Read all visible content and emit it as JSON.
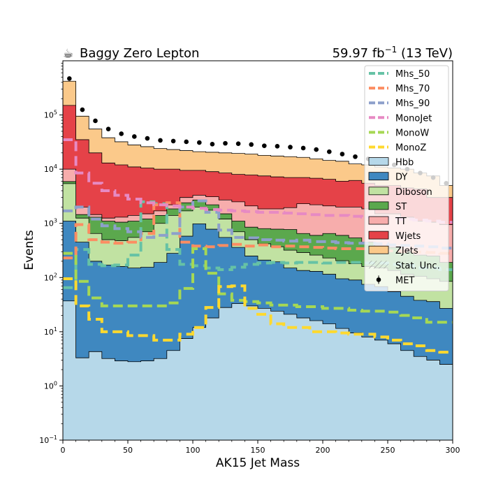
{
  "chart_data": {
    "type": "area",
    "title_left": "Baggy Zero Lepton",
    "title_left_icon": "coffee-cup-icon",
    "title_right_prefix": "59.97 fb",
    "title_right_exp": "−1",
    "title_right_suffix": " (13 TeV)",
    "xlabel": "AK15 Jet Mass",
    "ylabel": "Events",
    "xlim": [
      0,
      300
    ],
    "ylim": [
      0.1,
      1000000
    ],
    "yscale": "log",
    "x_ticks": [
      0,
      50,
      100,
      150,
      200,
      250,
      300
    ],
    "y_ticks": [
      {
        "value": 0.1,
        "base": "10",
        "exp": "−1"
      },
      {
        "value": 1,
        "base": "10",
        "exp": "0"
      },
      {
        "value": 10,
        "base": "10",
        "exp": "1"
      },
      {
        "value": 100,
        "base": "10",
        "exp": "2"
      },
      {
        "value": 1000,
        "base": "10",
        "exp": "3"
      },
      {
        "value": 10000,
        "base": "10",
        "exp": "4"
      },
      {
        "value": 100000,
        "base": "10",
        "exp": "5"
      }
    ],
    "bin_edges": [
      0,
      10,
      20,
      30,
      40,
      50,
      60,
      70,
      80,
      90,
      100,
      110,
      120,
      130,
      140,
      150,
      160,
      170,
      180,
      190,
      200,
      210,
      220,
      230,
      240,
      250,
      260,
      270,
      280,
      290,
      300
    ],
    "stack_order": [
      "Hbb",
      "DY",
      "Diboson",
      "ST",
      "TT",
      "Wjets",
      "ZJets"
    ],
    "backgrounds": [
      {
        "name": "Hbb",
        "color": "#b6d8e9",
        "cumulative": [
          37,
          3.3,
          4.3,
          3.2,
          2.9,
          2.8,
          2.9,
          3.2,
          4.5,
          7.5,
          12,
          18,
          28,
          33,
          30,
          27,
          24,
          21,
          18,
          16,
          14,
          11.5,
          9.5,
          8,
          7,
          6,
          4.5,
          3.5,
          3,
          2.5
        ]
      },
      {
        "name": "DY",
        "color": "#3f88c0",
        "cumulative": [
          1100,
          450,
          200,
          170,
          160,
          150,
          155,
          190,
          280,
          580,
          980,
          780,
          550,
          360,
          250,
          210,
          195,
          150,
          135,
          130,
          115,
          95,
          90,
          75,
          68,
          55,
          45,
          38,
          36,
          27
        ]
      },
      {
        "name": "Diboson",
        "color": "#c1e2a2",
        "cumulative": [
          5400,
          1250,
          650,
          500,
          480,
          550,
          700,
          1000,
          1400,
          1700,
          2000,
          1750,
          1200,
          700,
          500,
          420,
          370,
          320,
          290,
          260,
          230,
          205,
          180,
          160,
          150,
          135,
          115,
          105,
          95,
          85
        ]
      },
      {
        "name": "ST",
        "color": "#5ba84d",
        "cumulative": [
          5900,
          1450,
          1300,
          1100,
          1050,
          1100,
          1200,
          1400,
          1850,
          2400,
          2700,
          2200,
          1500,
          1100,
          850,
          800,
          780,
          770,
          650,
          600,
          650,
          600,
          540,
          450,
          380,
          360,
          300,
          260,
          250,
          190
        ]
      },
      {
        "name": "TT",
        "color": "#f7adac",
        "cumulative": [
          10000,
          2000,
          1450,
          1250,
          1300,
          1400,
          1500,
          1700,
          2200,
          3000,
          3300,
          3100,
          2700,
          2500,
          2100,
          1850,
          1850,
          1950,
          2300,
          2200,
          2100,
          2000,
          2000,
          1850,
          1500,
          1500,
          1300,
          1100,
          1050,
          950
        ]
      },
      {
        "name": "Wjets",
        "color": "#e54248",
        "cumulative": [
          150000,
          35000,
          20000,
          13000,
          12000,
          11000,
          10500,
          10000,
          10000,
          9500,
          9500,
          9000,
          8500,
          8000,
          7800,
          7500,
          7200,
          7000,
          7000,
          6800,
          6500,
          6000,
          6200,
          5500,
          5000,
          5000,
          4500,
          4300,
          3000,
          3000
        ]
      },
      {
        "name": "ZJets",
        "color": "#fbc98a",
        "cumulative": [
          420000,
          95000,
          55000,
          38000,
          32000,
          28000,
          26000,
          24000,
          23000,
          22000,
          21000,
          20500,
          20000,
          19500,
          19000,
          18000,
          17500,
          17000,
          16500,
          15500,
          14500,
          14000,
          12500,
          12000,
          11000,
          10500,
          10000,
          8500,
          7500,
          5000
        ]
      }
    ],
    "signals": [
      {
        "name": "Mhs_50",
        "color": "#66c2a5",
        "values": [
          65,
          330,
          175,
          165,
          170,
          260,
          2500,
          2300,
          330,
          175,
          165,
          150,
          140,
          155,
          175,
          185,
          190,
          185,
          190,
          190,
          185,
          190,
          190,
          185,
          185,
          175,
          170,
          150,
          150,
          140
        ]
      },
      {
        "name": "Mhs_70",
        "color": "#fc8d62",
        "values": [
          230,
          950,
          500,
          450,
          430,
          450,
          650,
          2200,
          2400,
          450,
          380,
          370,
          390,
          410,
          380,
          400,
          370,
          380,
          370,
          360,
          350,
          340,
          340,
          340,
          320,
          310,
          300,
          295,
          290,
          280
        ]
      },
      {
        "name": "Mhs_90",
        "color": "#8da0cb",
        "values": [
          1700,
          2000,
          1200,
          900,
          800,
          700,
          550,
          600,
          650,
          2000,
          2600,
          1600,
          750,
          550,
          540,
          500,
          490,
          470,
          490,
          460,
          460,
          440,
          430,
          430,
          420,
          400,
          390,
          380,
          370,
          350
        ]
      },
      {
        "name": "MonoJet",
        "color": "#e78ac3",
        "values": [
          35000,
          8500,
          5500,
          4000,
          3300,
          2800,
          2400,
          2200,
          2100,
          2000,
          1900,
          1800,
          1750,
          1700,
          1650,
          1600,
          1600,
          1550,
          1500,
          1450,
          1400,
          1400,
          1350,
          1300,
          1300,
          1250,
          1200,
          1150,
          1100,
          1050
        ]
      },
      {
        "name": "MonoW",
        "color": "#a6d854",
        "values": [
          280,
          85,
          42,
          30,
          30,
          30,
          30,
          30,
          34,
          63,
          340,
          120,
          50,
          38,
          36,
          34,
          31,
          31,
          29,
          29,
          27,
          27,
          25,
          24,
          24,
          23,
          20,
          18,
          15,
          15
        ]
      },
      {
        "name": "MonoZ",
        "color": "#ffd92f",
        "values": [
          95,
          30,
          17,
          10,
          10,
          8.5,
          8.5,
          7,
          7,
          9,
          12,
          28,
          68,
          70,
          27,
          21,
          14,
          12,
          12,
          10,
          10,
          9.5,
          9,
          9,
          8,
          7,
          6,
          5.5,
          4.5,
          4.2
        ]
      }
    ],
    "data_points": {
      "name": "MET",
      "x": [
        5,
        15,
        25,
        35,
        45,
        55,
        65,
        75,
        85,
        95,
        105,
        115,
        125,
        135,
        145,
        155,
        165,
        175,
        185,
        195,
        205,
        215,
        225,
        235,
        245,
        255,
        265,
        275,
        285,
        295
      ],
      "y": [
        470000,
        125000,
        78000,
        55000,
        45000,
        40000,
        37000,
        34000,
        33000,
        32000,
        31000,
        29000,
        30000,
        29500,
        28500,
        27000,
        26500,
        25500,
        24500,
        23000,
        21000,
        19000,
        17000,
        15500,
        14000,
        12000,
        10000,
        8500,
        7000,
        5500
      ]
    },
    "legend": {
      "placement": "top-right",
      "entries": [
        {
          "label": "Mhs_50",
          "kind": "line",
          "color": "#66c2a5"
        },
        {
          "label": "Mhs_70",
          "kind": "line",
          "color": "#fc8d62"
        },
        {
          "label": "Mhs_90",
          "kind": "line",
          "color": "#8da0cb"
        },
        {
          "label": "MonoJet",
          "kind": "line",
          "color": "#e78ac3"
        },
        {
          "label": "MonoW",
          "kind": "line",
          "color": "#a6d854"
        },
        {
          "label": "MonoZ",
          "kind": "line",
          "color": "#ffd92f"
        },
        {
          "label": "Hbb",
          "kind": "box",
          "color": "#b6d8e9"
        },
        {
          "label": "DY",
          "kind": "box",
          "color": "#3f88c0"
        },
        {
          "label": "Diboson",
          "kind": "box",
          "color": "#c1e2a2"
        },
        {
          "label": "ST",
          "kind": "box",
          "color": "#5ba84d"
        },
        {
          "label": "TT",
          "kind": "box",
          "color": "#f7adac"
        },
        {
          "label": "Wjets",
          "kind": "box",
          "color": "#e54248"
        },
        {
          "label": "ZJets",
          "kind": "box",
          "color": "#fbc98a"
        },
        {
          "label": "Stat. Unc.",
          "kind": "hatch",
          "color": "#888888"
        },
        {
          "label": "MET",
          "kind": "point",
          "color": "#000000"
        }
      ]
    }
  }
}
